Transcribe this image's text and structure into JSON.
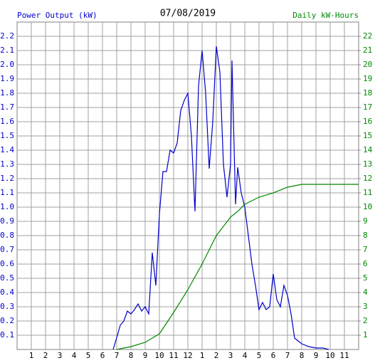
{
  "chart_data": {
    "type": "line",
    "title": "07/08/2019",
    "y_label": "Power Output (kW)",
    "y2_label": "Daily kW-Hours",
    "xlim": [
      0,
      24
    ],
    "xticks": [
      1,
      2,
      3,
      4,
      5,
      6,
      7,
      8,
      9,
      10,
      11,
      12,
      {
        "value": 13,
        "label": "1"
      },
      {
        "value": 14,
        "label": "2"
      },
      {
        "value": 15,
        "label": "3"
      },
      {
        "value": 16,
        "label": "4"
      },
      {
        "value": 17,
        "label": "5"
      },
      {
        "value": 18,
        "label": "6"
      },
      {
        "value": 19,
        "label": "7"
      },
      {
        "value": 20,
        "label": "8"
      },
      {
        "value": 21,
        "label": "9"
      },
      {
        "value": 22,
        "label": "10"
      },
      {
        "value": 23,
        "label": "11"
      }
    ],
    "ylim": [
      0,
      2.3
    ],
    "yticks": [
      0.1,
      0.2,
      0.3,
      0.4,
      0.5,
      0.6,
      0.7,
      0.8,
      0.9,
      {
        "value": 1,
        "label": "1.0"
      },
      1.1,
      1.2,
      1.3,
      1.4,
      1.5,
      1.6,
      1.7,
      1.8,
      1.9,
      {
        "value": 2,
        "label": "2.0"
      },
      2.1,
      2.2
    ],
    "y2lim": [
      0,
      23
    ],
    "y2ticks": [
      1,
      2,
      3,
      4,
      5,
      6,
      7,
      8,
      9,
      10,
      11,
      12,
      13,
      14,
      15,
      16,
      17,
      18,
      19,
      20,
      21,
      22
    ],
    "grid": true,
    "series": [
      {
        "name": "Power Output (kW)",
        "color": "#0000cc",
        "x": [
          6.75,
          7.05,
          7.25,
          7.5,
          7.75,
          8,
          8.25,
          8.5,
          8.75,
          9,
          9.25,
          9.5,
          9.75,
          10,
          10.25,
          10.5,
          10.75,
          11,
          11.25,
          11.5,
          11.75,
          12,
          12.25,
          12.5,
          12.75,
          13,
          13.25,
          13.5,
          13.75,
          14,
          14.25,
          14.5,
          14.75,
          15,
          15.1,
          15.35,
          15.5,
          15.75,
          16,
          16.25,
          16.5,
          16.75,
          17,
          17.25,
          17.5,
          17.75,
          18,
          18.25,
          18.5,
          18.75,
          19,
          19.25,
          19.5,
          19.75,
          20,
          20.5,
          21,
          21.5,
          21.9
        ],
        "values": [
          0,
          0.1,
          0.17,
          0.2,
          0.27,
          0.25,
          0.28,
          0.32,
          0.27,
          0.3,
          0.25,
          0.68,
          0.45,
          0.95,
          1.25,
          1.25,
          1.4,
          1.38,
          1.45,
          1.68,
          1.75,
          1.8,
          1.5,
          0.97,
          1.85,
          2.1,
          1.8,
          1.27,
          1.6,
          2.13,
          1.95,
          1.3,
          1.07,
          1.3,
          2.03,
          1.02,
          1.28,
          1.1,
          1.0,
          0.8,
          0.6,
          0.45,
          0.28,
          0.33,
          0.28,
          0.3,
          0.53,
          0.35,
          0.3,
          0.45,
          0.38,
          0.25,
          0.08,
          0.06,
          0.04,
          0.02,
          0.01,
          0.01,
          0
        ]
      },
      {
        "name": "Daily kW-Hours",
        "color": "#008800",
        "axis": "y2",
        "x": [
          7,
          8,
          9,
          10,
          11,
          12,
          13,
          14,
          15,
          15.5,
          16,
          17,
          18,
          19,
          20,
          24
        ],
        "values": [
          0,
          0.2,
          0.5,
          1.1,
          2.6,
          4.2,
          6.0,
          8.0,
          9.3,
          9.7,
          10.2,
          10.7,
          11.0,
          11.4,
          11.6,
          11.6
        ]
      }
    ]
  }
}
